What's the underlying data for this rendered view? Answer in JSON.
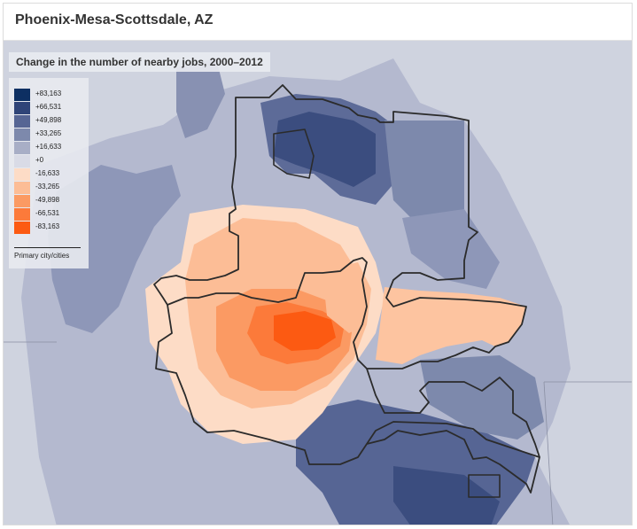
{
  "header": {
    "title": "Phoenix-Mesa-Scottsdale, AZ"
  },
  "map": {
    "title": "Change in the number of nearby jobs, 2000–2012",
    "legend": {
      "items": [
        {
          "label": "+83,163",
          "color": "#0d2f62"
        },
        {
          "label": "+66,531",
          "color": "#2f4478"
        },
        {
          "label": "+49,898",
          "color": "#566594"
        },
        {
          "label": "+33,265",
          "color": "#7d89ac"
        },
        {
          "label": "+16,633",
          "color": "#a8aec6"
        },
        {
          "label": "+0",
          "color": "#d9dbe6"
        },
        {
          "label": "-16,633",
          "color": "#fddcc6"
        },
        {
          "label": "-33,265",
          "color": "#fcbd96"
        },
        {
          "label": "-49,898",
          "color": "#fb9a63"
        },
        {
          "label": "-66,531",
          "color": "#fc7a3a"
        },
        {
          "label": "-83,163",
          "color": "#fc5a12"
        }
      ],
      "boundary_label": "Primary city/cities"
    }
  }
}
